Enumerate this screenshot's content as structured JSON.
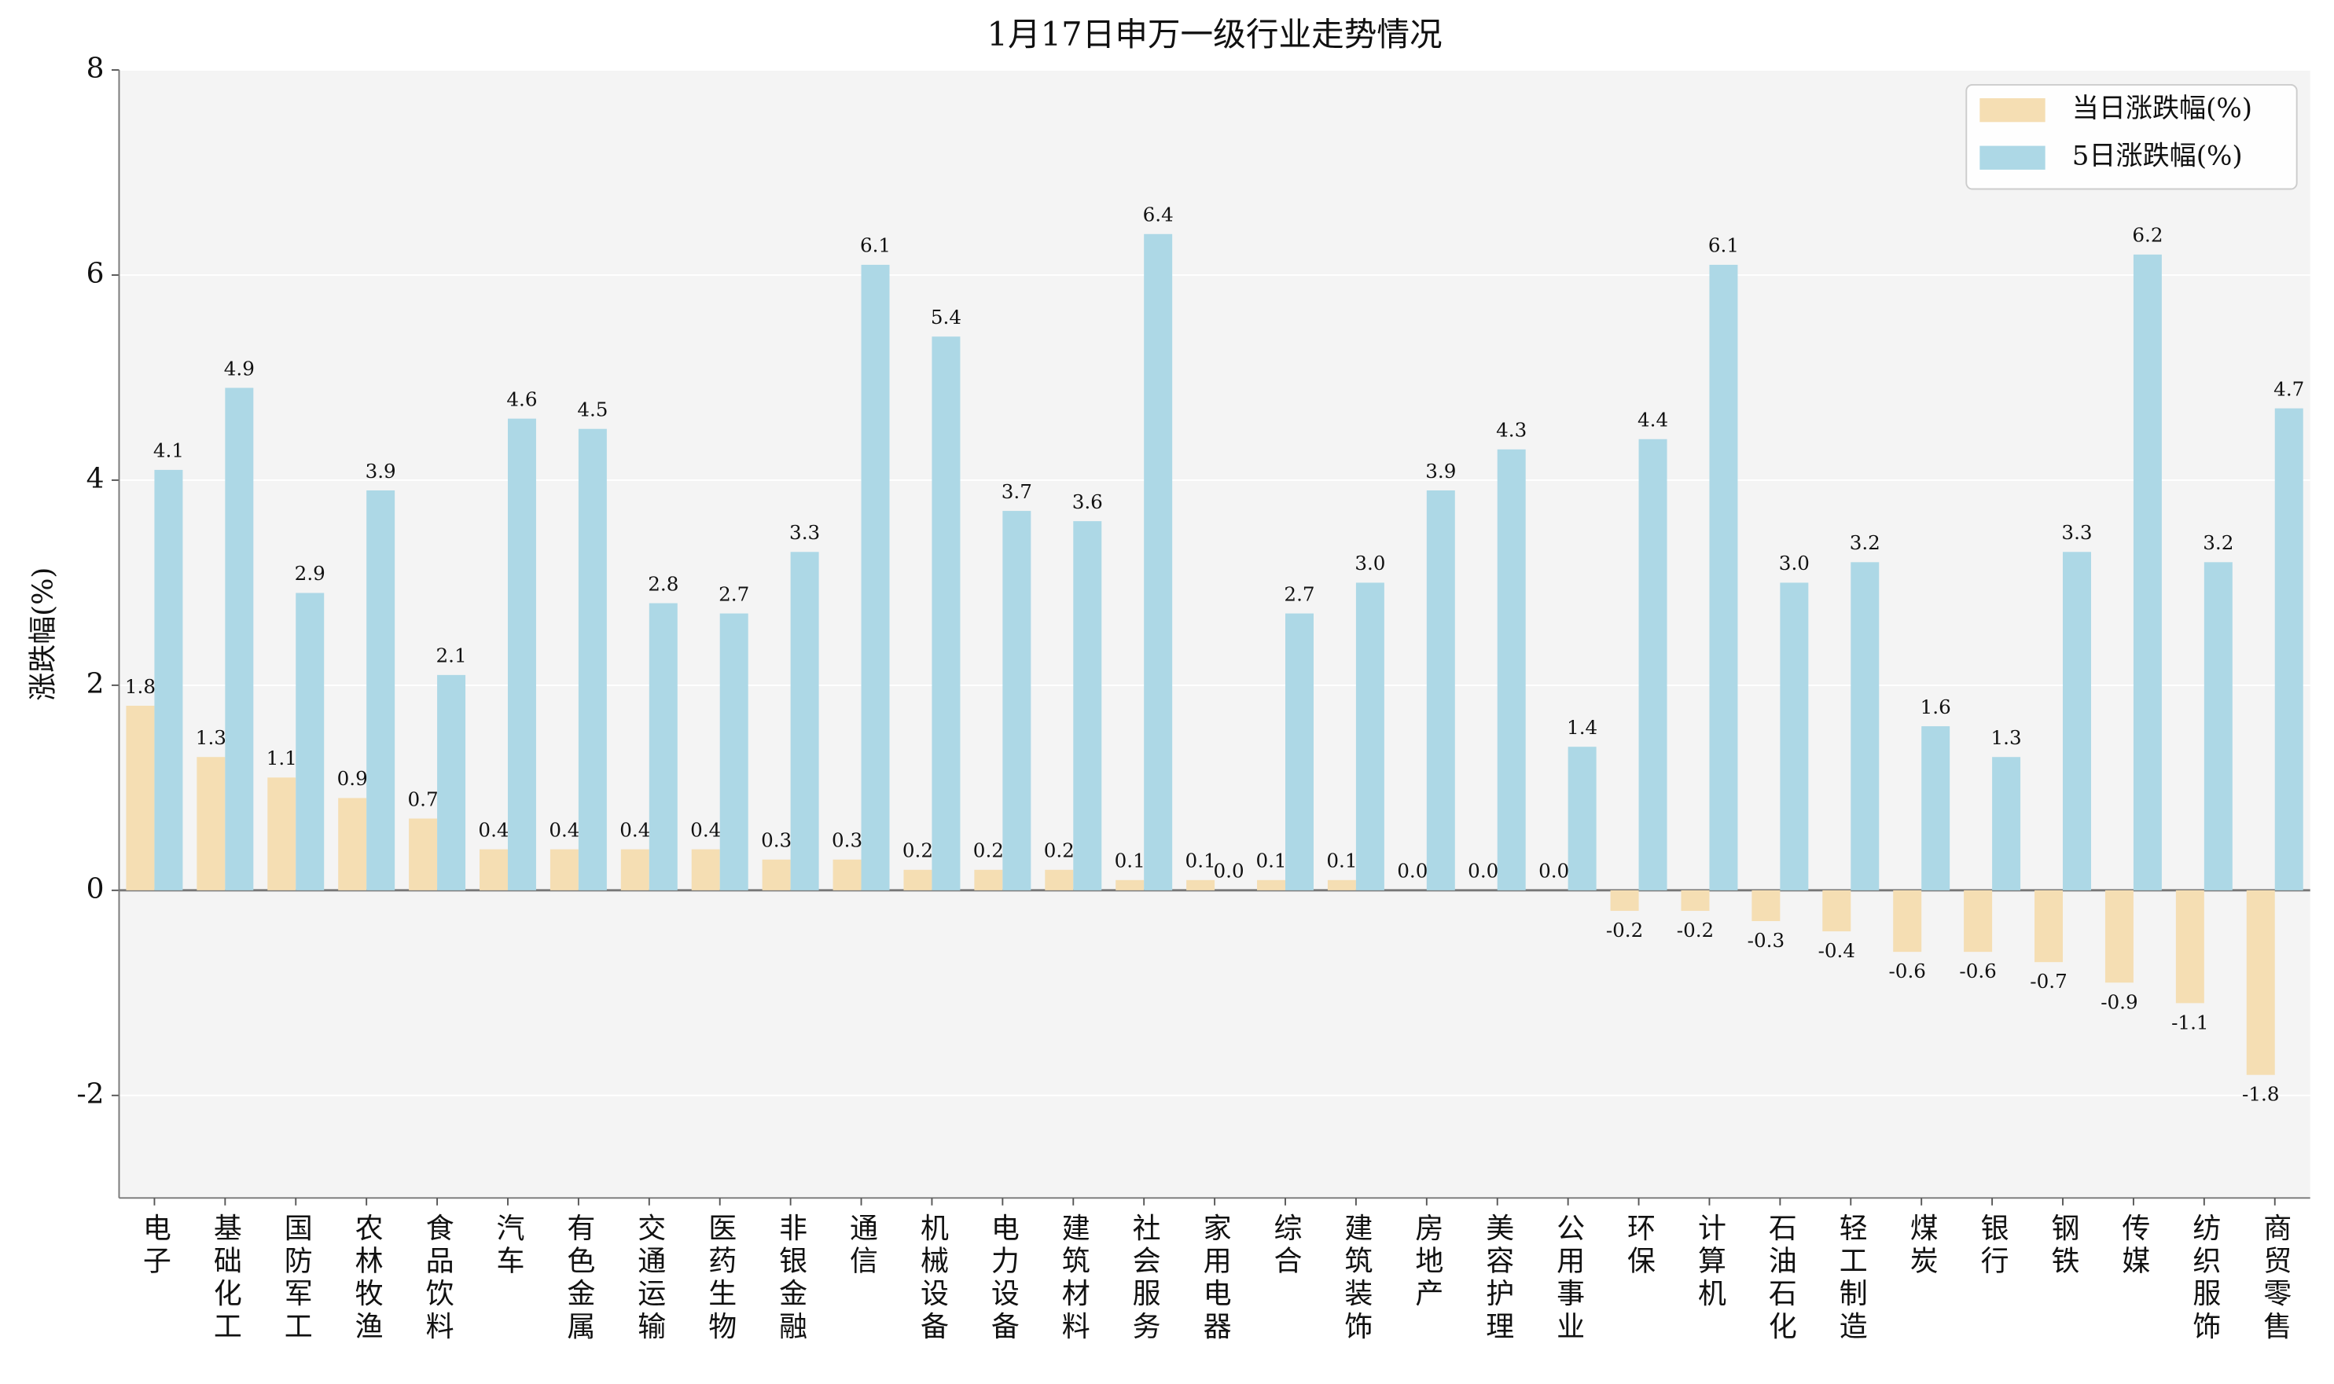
{
  "chart_data": {
    "type": "bar",
    "title": "1月17日申万一级行业走势情况",
    "y_label": "涨跌幅(%)",
    "categories": [
      "电子",
      "基础化工",
      "国防军工",
      "农林牧渔",
      "食品饮料",
      "汽车",
      "有色金属",
      "交通运输",
      "医药生物",
      "非银金融",
      "通信",
      "机械设备",
      "电力设备",
      "建筑材料",
      "社会服务",
      "家用电器",
      "综合",
      "建筑装饰",
      "房地产",
      "美容护理",
      "公用事业",
      "环保",
      "计算机",
      "石油石化",
      "轻工制造",
      "煤炭",
      "银行",
      "钢铁",
      "传媒",
      "纺织服饰",
      "商贸零售"
    ],
    "series": [
      {
        "name": "当日涨跌幅(%)",
        "color": "#f5deb3",
        "values": [
          1.8,
          1.3,
          1.1,
          0.9,
          0.7,
          0.4,
          0.4,
          0.4,
          0.4,
          0.3,
          0.3,
          0.2,
          0.2,
          0.2,
          0.1,
          0.1,
          0.1,
          0.1,
          0.0,
          0.0,
          0.0,
          -0.2,
          -0.2,
          -0.3,
          -0.4,
          -0.6,
          -0.6,
          -0.7,
          -0.9,
          -1.1,
          -1.8
        ],
        "value_labels": [
          "1.8",
          "1.3",
          "1.1",
          "0.9",
          "0.7",
          "0.4",
          "0.4",
          "0.4",
          "0.4",
          "0.3",
          "0.3",
          "0.2",
          "0.2",
          "0.2",
          "0.1",
          "0.1",
          "0.1",
          "0.1",
          "0.0",
          "0.0",
          "0.0",
          "-0.2",
          "-0.2",
          "-0.3",
          "-0.4",
          "-0.6",
          "-0.6",
          "-0.7",
          "-0.9",
          "-1.1",
          "-1.8"
        ]
      },
      {
        "name": "5日涨跌幅(%)",
        "color": "#add8e6",
        "values": [
          4.1,
          4.9,
          2.9,
          3.9,
          2.1,
          4.6,
          4.5,
          2.8,
          2.7,
          3.3,
          6.1,
          5.4,
          3.7,
          3.6,
          6.4,
          0.0,
          2.7,
          3.0,
          3.9,
          4.3,
          1.4,
          4.4,
          6.1,
          3.0,
          3.2,
          1.6,
          1.3,
          3.3,
          6.2,
          3.2,
          4.7
        ],
        "value_labels": [
          "4.1",
          "4.9",
          "2.9",
          "3.9",
          "2.1",
          "4.6",
          "4.5",
          "2.8",
          "2.7",
          "3.3",
          "6.1",
          "5.4",
          "3.7",
          "3.6",
          "6.4",
          "0.0",
          "2.7",
          "3.0",
          "3.9",
          "4.3",
          "1.4",
          "4.4",
          "6.1",
          "3.0",
          "3.2",
          "1.6",
          "1.3",
          "3.3",
          "6.2",
          "3.2",
          "4.7"
        ]
      }
    ],
    "ylim": [
      -3,
      8
    ],
    "yticks": [
      -2,
      0,
      2,
      4,
      6,
      8
    ],
    "grid": true,
    "legend": "upper right"
  }
}
